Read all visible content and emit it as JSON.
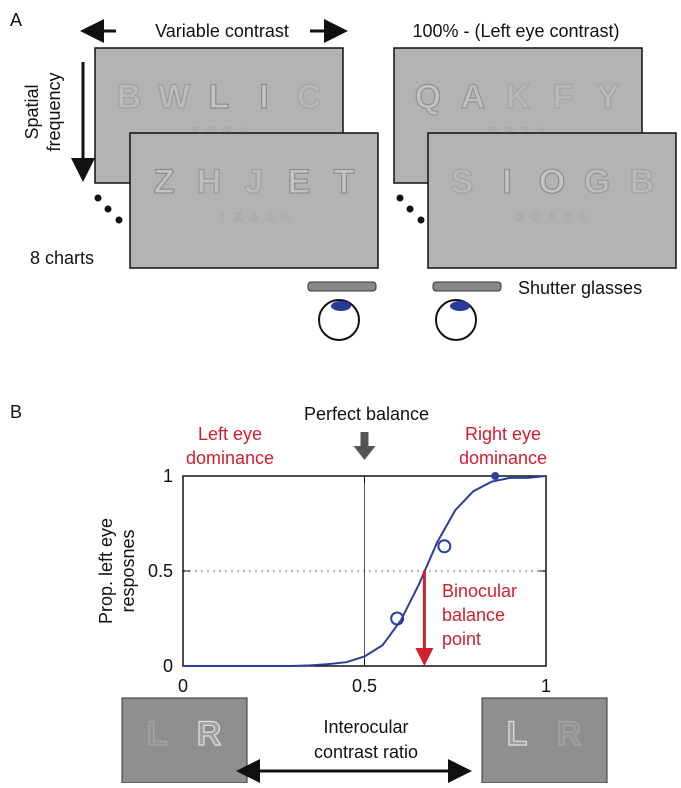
{
  "panel_a": {
    "label": "A",
    "left_header": "Variable contrast",
    "right_header": "100% - (Left eye contrast)",
    "axis_label": [
      "Spatial",
      "frequency"
    ],
    "count_label": "8 charts",
    "glasses_label": "Shutter glasses",
    "charts": [
      {
        "big": [
          "B",
          "W",
          "L",
          "I",
          "C"
        ],
        "small": [
          "Z",
          "O",
          "R",
          "V"
        ]
      },
      {
        "big": [
          "Z",
          "H",
          "J",
          "E",
          "T"
        ],
        "small": [
          "I",
          "Z",
          "B",
          "S",
          "R"
        ]
      },
      {
        "big": [
          "Q",
          "A",
          "K",
          "F",
          "Y"
        ],
        "small": [
          "D",
          "R",
          "T",
          "X"
        ]
      },
      {
        "big": [
          "S",
          "I",
          "O",
          "G",
          "B"
        ],
        "small": [
          "B",
          "U",
          "A",
          "Y",
          "N"
        ]
      }
    ]
  },
  "chart_data": {
    "type": "line",
    "label": "B",
    "y_label": [
      "Prop. left eye",
      "resposnes"
    ],
    "x_label": [
      "Interocular",
      "contrast ratio"
    ],
    "xlim": [
      0,
      1
    ],
    "xticks": [
      0,
      0.5,
      1
    ],
    "ylim": [
      0,
      1
    ],
    "yticks": [
      0,
      0.5,
      1
    ],
    "reference_x": 0.5,
    "reference_y": 0.5,
    "series": [
      {
        "type": "line",
        "color": "#2b3f9e",
        "x": [
          0,
          0.1,
          0.2,
          0.3,
          0.35,
          0.4,
          0.45,
          0.5,
          0.55,
          0.6,
          0.65,
          0.7,
          0.75,
          0.8,
          0.85,
          0.9,
          0.95,
          1
        ],
        "values": [
          0,
          0,
          0,
          0,
          0.003,
          0.01,
          0.02,
          0.05,
          0.11,
          0.24,
          0.43,
          0.65,
          0.82,
          0.92,
          0.97,
          0.99,
          0.99,
          1
        ]
      },
      {
        "type": "scatter",
        "color": "#2b3f9e",
        "x": [
          0.59,
          0.72,
          0.86
        ],
        "values": [
          0.25,
          0.63,
          1
        ]
      }
    ],
    "annotations": {
      "perfect_balance": "Perfect balance",
      "left_dominance": [
        "Left eye",
        "dominance"
      ],
      "right_dominance": [
        "Right eye",
        "dominance"
      ],
      "balance_point": {
        "x": 0.665,
        "y": 0.5,
        "label": [
          "Binocular",
          "balance",
          "point"
        ]
      }
    },
    "examples": [
      [
        "L",
        "R"
      ],
      [
        "L",
        "R"
      ]
    ]
  }
}
